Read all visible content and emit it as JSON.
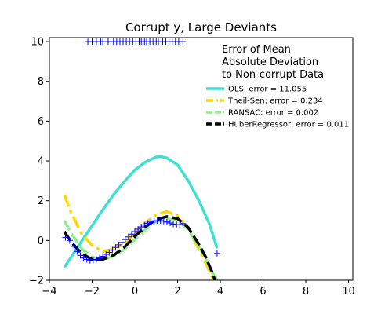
{
  "chart_data": {
    "type": "scatter",
    "title": "Corrupt y, Large Deviants",
    "xlabel": "",
    "ylabel": "",
    "xlim": [
      -4,
      10.2
    ],
    "ylim": [
      -2,
      10.2
    ],
    "x_ticks": [
      -4,
      -2,
      0,
      2,
      4,
      6,
      8,
      10
    ],
    "y_ticks": [
      -2,
      0,
      2,
      4,
      6,
      8,
      10
    ],
    "x_tick_labels": [
      "−4",
      "−2",
      "0",
      "2",
      "4",
      "6",
      "8",
      "10"
    ],
    "y_tick_labels": [
      "−2",
      "0",
      "2",
      "4",
      "6",
      "8",
      "10"
    ],
    "grid": false,
    "legend": {
      "placement": "upper-right",
      "title_lines": [
        "Error of Mean",
        "Absolute Deviation",
        "to Non-corrupt Data"
      ],
      "entries": [
        {
          "label": "OLS: error = 11.055",
          "color": "#40e0d0",
          "style": "solid"
        },
        {
          "label": "Theil-Sen: error = 0.234",
          "color": "#ffd700",
          "style": "dashdot"
        },
        {
          "label": "RANSAC: error = 0.002",
          "color": "#90ee90",
          "style": "dashed"
        },
        {
          "label": "HuberRegressor: error = 0.011",
          "color": "#000000",
          "style": "dashed"
        }
      ]
    },
    "scatter": {
      "color": "#0000ff",
      "marker": "plus",
      "x": [
        -3.25,
        -3.05,
        -2.85,
        -2.7,
        -2.55,
        -2.4,
        -2.25,
        -2.1,
        -1.95,
        -1.8,
        -1.65,
        -1.5,
        -1.35,
        -1.2,
        -1.05,
        -0.9,
        -0.75,
        -0.6,
        -0.45,
        -0.3,
        -0.15,
        0.0,
        0.15,
        0.3,
        0.45,
        0.6,
        0.75,
        0.9,
        1.05,
        1.2,
        1.35,
        1.5,
        1.65,
        1.8,
        1.95,
        2.1,
        2.25,
        3.85,
        -2.2,
        -2.0,
        -1.8,
        -1.6,
        -1.5,
        -1.25,
        -1.0,
        -0.85,
        -0.7,
        -0.55,
        -0.4,
        -0.25,
        -0.1,
        0.05,
        0.2,
        0.3,
        0.45,
        0.55,
        0.7,
        0.85,
        1.0,
        1.1,
        1.3,
        1.45,
        1.6,
        1.75,
        1.9,
        2.05,
        2.25
      ],
      "y": [
        0.15,
        0.0,
        -0.3,
        -0.55,
        -0.75,
        -0.88,
        -0.95,
        -1.0,
        -0.98,
        -0.95,
        -0.88,
        -0.8,
        -0.7,
        -0.6,
        -0.48,
        -0.35,
        -0.22,
        -0.1,
        0.05,
        0.18,
        0.32,
        0.45,
        0.57,
        0.68,
        0.78,
        0.86,
        0.93,
        0.97,
        1.0,
        1.0,
        0.97,
        0.93,
        0.88,
        0.83,
        0.8,
        0.8,
        0.85,
        -0.65,
        10.0,
        10.0,
        10.0,
        10.0,
        10.0,
        10.0,
        10.0,
        10.0,
        10.0,
        10.0,
        10.0,
        10.0,
        10.0,
        10.0,
        10.0,
        10.0,
        10.0,
        10.0,
        10.0,
        10.0,
        10.0,
        10.0,
        10.0,
        10.0,
        10.0,
        10.0,
        10.0,
        10.0,
        10.0
      ]
    },
    "series": [
      {
        "name": "OLS: error = 11.055",
        "color": "#40e0d0",
        "style": "solid",
        "x": [
          -3.3,
          -2.5,
          -2.0,
          -1.5,
          -1.0,
          -0.5,
          0.0,
          0.5,
          1.0,
          1.2,
          1.5,
          2.0,
          2.5,
          3.0,
          3.5,
          3.85
        ],
        "y": [
          -1.35,
          -0.05,
          0.75,
          1.55,
          2.3,
          2.95,
          3.55,
          3.95,
          4.2,
          4.22,
          4.15,
          3.8,
          3.0,
          2.0,
          0.8,
          -0.4
        ]
      },
      {
        "name": "Theil-Sen: error = 0.234",
        "color": "#ffd700",
        "style": "dashdot",
        "x": [
          -3.3,
          -3.0,
          -2.5,
          -2.0,
          -1.5,
          -1.0,
          -0.5,
          0.0,
          0.5,
          1.0,
          1.5,
          2.0,
          2.5,
          3.0,
          3.3,
          3.6,
          3.75
        ],
        "y": [
          2.3,
          1.45,
          0.35,
          -0.25,
          -0.55,
          -0.45,
          -0.15,
          0.35,
          0.9,
          1.3,
          1.45,
          1.25,
          0.55,
          -0.45,
          -1.1,
          -1.8,
          -2.0
        ]
      },
      {
        "name": "RANSAC: error = 0.002",
        "color": "#90ee90",
        "style": "dashed",
        "x": [
          -3.3,
          -3.0,
          -2.5,
          -2.0,
          -1.5,
          -1.0,
          -0.5,
          0.0,
          0.5,
          1.0,
          1.5,
          2.0,
          2.5,
          3.0,
          3.3,
          3.6,
          3.85
        ],
        "y": [
          1.0,
          0.4,
          -0.4,
          -0.85,
          -0.95,
          -0.8,
          -0.45,
          0.05,
          0.55,
          0.95,
          1.1,
          1.0,
          0.55,
          -0.3,
          -0.9,
          -1.55,
          -2.0
        ]
      },
      {
        "name": "HuberRegressor: error = 0.011",
        "color": "#000000",
        "style": "dashed",
        "x": [
          -3.3,
          -3.0,
          -2.5,
          -2.0,
          -1.5,
          -1.0,
          -0.5,
          0.0,
          0.5,
          1.0,
          1.5,
          2.0,
          2.5,
          3.0,
          3.3,
          3.6,
          3.75
        ],
        "y": [
          0.45,
          -0.05,
          -0.65,
          -0.95,
          -0.95,
          -0.75,
          -0.35,
          0.2,
          0.7,
          1.05,
          1.2,
          1.1,
          0.65,
          -0.2,
          -0.8,
          -1.55,
          -2.0
        ]
      }
    ]
  }
}
